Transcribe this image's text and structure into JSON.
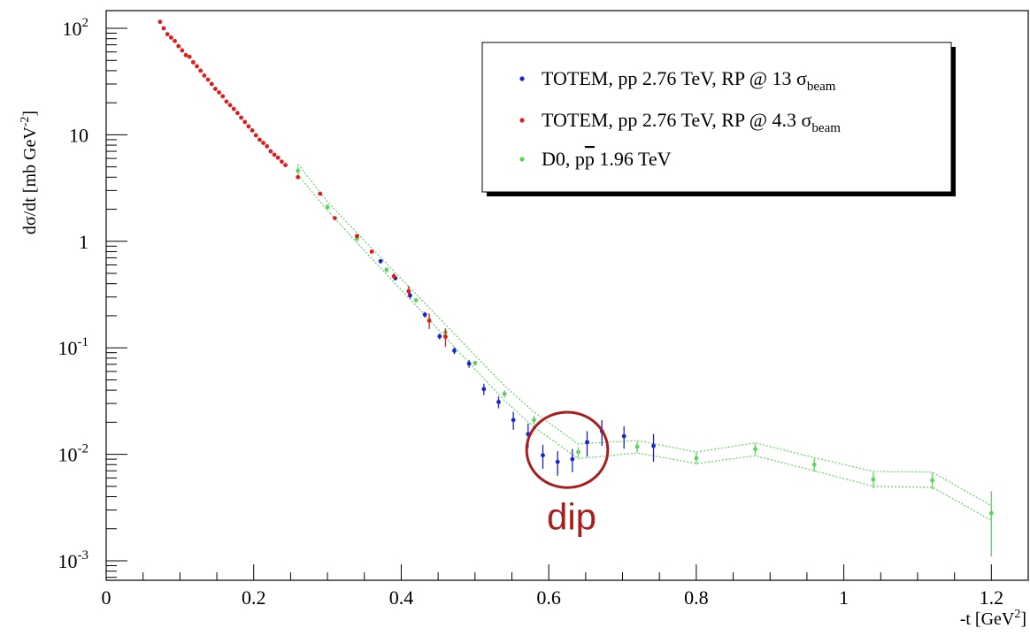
{
  "chart_data": {
    "type": "scatter",
    "xlabel": "-t [GeV²]",
    "ylabel": "dσ/dt [mb GeV⁻²]",
    "xlabel_parts": {
      "main": "-t [GeV",
      "sup": "2",
      "end": "]"
    },
    "ylabel_parts": {
      "main": "dσ/dt [mb GeV",
      "sup": "-2",
      "end": "]"
    },
    "xlim": [
      0,
      1.25
    ],
    "ylim": [
      0.0007,
      150
    ],
    "yscale": "log",
    "x_ticks": [
      {
        "value": 0,
        "label": "0"
      },
      {
        "value": 0.2,
        "label": "0.2"
      },
      {
        "value": 0.4,
        "label": "0.4"
      },
      {
        "value": 0.6,
        "label": "0.6"
      },
      {
        "value": 0.8,
        "label": "0.8"
      },
      {
        "value": 1.0,
        "label": "1"
      },
      {
        "value": 1.2,
        "label": "1.2"
      }
    ],
    "y_ticks": [
      {
        "value": 100,
        "base": "10",
        "exp": "2"
      },
      {
        "value": 10,
        "base": "10",
        "exp": ""
      },
      {
        "value": 1,
        "base": "1",
        "exp": ""
      },
      {
        "value": 0.1,
        "base": "10",
        "exp": "-1"
      },
      {
        "value": 0.01,
        "base": "10",
        "exp": "-2"
      },
      {
        "value": 0.001,
        "base": "10",
        "exp": "-3"
      }
    ],
    "legend_position": "top-right",
    "series": [
      {
        "name": "TOTEM, pp 2.76 TeV, RP @ 13 σbeam",
        "legend": {
          "main": "TOTEM, pp 2.76 TeV, RP @ 13 σ",
          "sub": "beam"
        },
        "color": "#1b22d4",
        "points": [
          {
            "x": 0.372,
            "y": 0.65,
            "err": 0.03
          },
          {
            "x": 0.392,
            "y": 0.45,
            "err": 0.02
          },
          {
            "x": 0.412,
            "y": 0.31,
            "err": 0.02
          },
          {
            "x": 0.432,
            "y": 0.205,
            "err": 0.012
          },
          {
            "x": 0.452,
            "y": 0.128,
            "err": 0.008
          },
          {
            "x": 0.472,
            "y": 0.094,
            "err": 0.007
          },
          {
            "x": 0.492,
            "y": 0.071,
            "err": 0.006
          },
          {
            "x": 0.512,
            "y": 0.041,
            "err": 0.005
          },
          {
            "x": 0.532,
            "y": 0.031,
            "err": 0.004
          },
          {
            "x": 0.552,
            "y": 0.021,
            "err": 0.004
          },
          {
            "x": 0.572,
            "y": 0.0155,
            "err": 0.004
          },
          {
            "x": 0.592,
            "y": 0.0098,
            "err": 0.0025
          },
          {
            "x": 0.612,
            "y": 0.0085,
            "err": 0.0022
          },
          {
            "x": 0.632,
            "y": 0.009,
            "err": 0.0022
          },
          {
            "x": 0.652,
            "y": 0.013,
            "err": 0.0035
          },
          {
            "x": 0.672,
            "y": 0.0165,
            "err": 0.0045
          },
          {
            "x": 0.702,
            "y": 0.0148,
            "err": 0.0035
          },
          {
            "x": 0.742,
            "y": 0.012,
            "err": 0.0035
          }
        ]
      },
      {
        "name": "TOTEM, pp 2.76 TeV, RP @ 4.3 σbeam",
        "legend": {
          "main": "TOTEM, pp 2.76 TeV, RP @ 4.3 σ",
          "sub": "beam"
        },
        "color": "#e01b1b",
        "points": [
          {
            "x": 0.073,
            "y": 115
          },
          {
            "x": 0.078,
            "y": 100
          },
          {
            "x": 0.083,
            "y": 88
          },
          {
            "x": 0.088,
            "y": 82
          },
          {
            "x": 0.093,
            "y": 76
          },
          {
            "x": 0.098,
            "y": 68
          },
          {
            "x": 0.103,
            "y": 62
          },
          {
            "x": 0.108,
            "y": 56
          },
          {
            "x": 0.113,
            "y": 54
          },
          {
            "x": 0.118,
            "y": 48
          },
          {
            "x": 0.123,
            "y": 44
          },
          {
            "x": 0.128,
            "y": 40
          },
          {
            "x": 0.133,
            "y": 36
          },
          {
            "x": 0.138,
            "y": 33
          },
          {
            "x": 0.143,
            "y": 30
          },
          {
            "x": 0.148,
            "y": 27
          },
          {
            "x": 0.153,
            "y": 25
          },
          {
            "x": 0.158,
            "y": 23
          },
          {
            "x": 0.163,
            "y": 20.5
          },
          {
            "x": 0.168,
            "y": 19
          },
          {
            "x": 0.173,
            "y": 17.5
          },
          {
            "x": 0.178,
            "y": 16
          },
          {
            "x": 0.183,
            "y": 14.5
          },
          {
            "x": 0.188,
            "y": 13.2
          },
          {
            "x": 0.193,
            "y": 12
          },
          {
            "x": 0.198,
            "y": 11
          },
          {
            "x": 0.203,
            "y": 9.9
          },
          {
            "x": 0.208,
            "y": 9.0
          },
          {
            "x": 0.213,
            "y": 8.4
          },
          {
            "x": 0.218,
            "y": 7.8
          },
          {
            "x": 0.223,
            "y": 7.0
          },
          {
            "x": 0.228,
            "y": 6.5
          },
          {
            "x": 0.233,
            "y": 6.1
          },
          {
            "x": 0.238,
            "y": 5.6
          },
          {
            "x": 0.243,
            "y": 5.2
          },
          {
            "x": 0.26,
            "y": 4.0
          },
          {
            "x": 0.29,
            "y": 2.8
          },
          {
            "x": 0.31,
            "y": 1.65
          },
          {
            "x": 0.34,
            "y": 1.12
          },
          {
            "x": 0.36,
            "y": 0.8
          },
          {
            "x": 0.39,
            "y": 0.47,
            "err": 0.03
          },
          {
            "x": 0.41,
            "y": 0.34,
            "err": 0.04
          },
          {
            "x": 0.438,
            "y": 0.18,
            "err": 0.03
          },
          {
            "x": 0.46,
            "y": 0.127,
            "err": 0.025
          }
        ]
      },
      {
        "name": "D0, pp̅ 1.96 TeV",
        "legend": {
          "main": "D0, p",
          "bar": "p",
          "end": " 1.96 TeV"
        },
        "color": "#5fd35f",
        "points": [
          {
            "x": 0.26,
            "y": 4.6,
            "err": 0.35
          },
          {
            "x": 0.3,
            "y": 2.1,
            "err": 0.12
          },
          {
            "x": 0.34,
            "y": 1.06,
            "err": 0.06
          },
          {
            "x": 0.38,
            "y": 0.54,
            "err": 0.03
          },
          {
            "x": 0.42,
            "y": 0.28,
            "err": 0.015
          },
          {
            "x": 0.46,
            "y": 0.14,
            "err": 0.008
          },
          {
            "x": 0.5,
            "y": 0.072,
            "err": 0.004
          },
          {
            "x": 0.54,
            "y": 0.037,
            "err": 0.003
          },
          {
            "x": 0.58,
            "y": 0.021,
            "err": 0.002
          },
          {
            "x": 0.64,
            "y": 0.0105,
            "err": 0.0012
          },
          {
            "x": 0.72,
            "y": 0.0118,
            "err": 0.0014
          },
          {
            "x": 0.8,
            "y": 0.0092,
            "err": 0.0012
          },
          {
            "x": 0.88,
            "y": 0.0112,
            "err": 0.0014
          },
          {
            "x": 0.96,
            "y": 0.008,
            "err": 0.0011
          },
          {
            "x": 1.04,
            "y": 0.0058,
            "err": 0.001
          },
          {
            "x": 1.12,
            "y": 0.0057,
            "err": 0.001
          },
          {
            "x": 1.2,
            "y": 0.0028,
            "err": 0.0017
          }
        ],
        "band": {
          "x": [
            0.26,
            0.3,
            0.34,
            0.38,
            0.42,
            0.46,
            0.5,
            0.54,
            0.58,
            0.64,
            0.72,
            0.8,
            0.88,
            0.96,
            1.04,
            1.12,
            1.2
          ],
          "upper": [
            5.3,
            2.35,
            1.2,
            0.62,
            0.32,
            0.165,
            0.085,
            0.044,
            0.025,
            0.0125,
            0.0135,
            0.0105,
            0.0128,
            0.0093,
            0.0069,
            0.0068,
            0.0033
          ],
          "lower": [
            4.2,
            1.95,
            0.97,
            0.49,
            0.25,
            0.125,
            0.063,
            0.032,
            0.018,
            0.0091,
            0.0103,
            0.0082,
            0.0097,
            0.007,
            0.005,
            0.0049,
            0.0024
          ]
        }
      }
    ],
    "annotation": {
      "text": "dip",
      "color": "#a81d1d",
      "center": {
        "x": 0.625,
        "y": 0.011
      },
      "radius_x": 0.055
    }
  }
}
